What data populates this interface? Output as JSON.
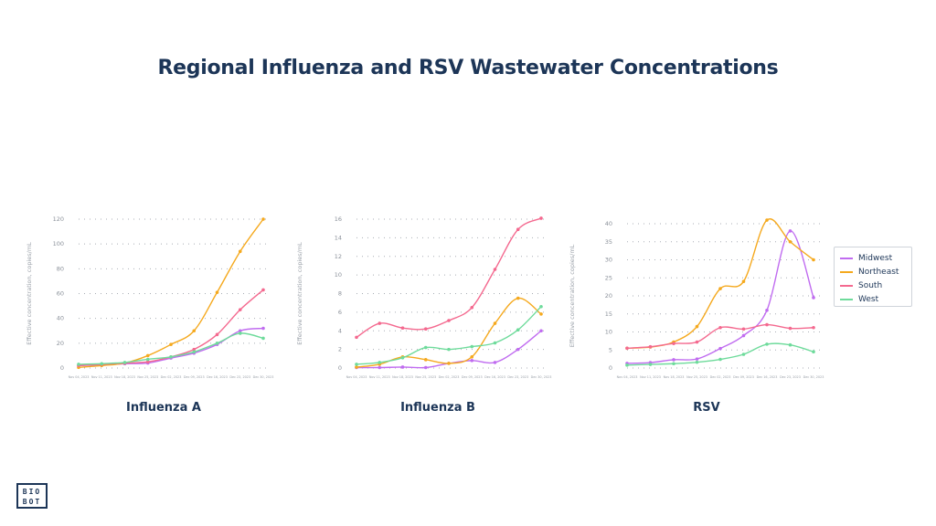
{
  "title": "Regional  Influenza and RSV Wastewater Concentrations",
  "logo": {
    "line1": "BIO",
    "line2": "BOT"
  },
  "series_colors": {
    "Midwest": "#c06cf0",
    "Northeast": "#f5a91e",
    "South": "#f4698f",
    "West": "#6edb9b"
  },
  "legend": [
    "Midwest",
    "Northeast",
    "South",
    "West"
  ],
  "chart_data": [
    {
      "type": "line",
      "title": "Influenza A",
      "ylabel": "Effective concentration, copies/mL",
      "ylim": [
        0,
        120
      ],
      "yticks": [
        0,
        20,
        40,
        60,
        80,
        100,
        120
      ],
      "x": [
        "Nov 04, 2023",
        "Nov 11, 2023",
        "Nov 18, 2023",
        "Nov 25, 2023",
        "Dec 02, 2023",
        "Dec 09, 2023",
        "Dec 16, 2023",
        "Dec 23, 2023",
        "Dec 30, 2023"
      ],
      "series": [
        {
          "name": "Midwest",
          "values": [
            2,
            2.5,
            3.5,
            4,
            8,
            12,
            19,
            30,
            32
          ]
        },
        {
          "name": "Northeast",
          "values": [
            0.5,
            2,
            4,
            10,
            19,
            30,
            61,
            94,
            120
          ]
        },
        {
          "name": "South",
          "values": [
            2,
            3,
            4,
            5,
            9,
            15,
            27,
            47,
            63
          ]
        },
        {
          "name": "West",
          "values": [
            3,
            3.5,
            4.5,
            7,
            9,
            13,
            20,
            28,
            24
          ]
        }
      ]
    },
    {
      "type": "line",
      "title": "Influenza B",
      "ylabel": "Effective concentration, copies/mL",
      "ylim": [
        0,
        16
      ],
      "yticks": [
        0,
        2,
        4,
        6,
        8,
        10,
        12,
        14,
        16
      ],
      "x": [
        "Nov 04, 2023",
        "Nov 11, 2023",
        "Nov 18, 2023",
        "Nov 25, 2023",
        "Dec 02, 2023",
        "Dec 09, 2023",
        "Dec 16, 2023",
        "Dec 23, 2023",
        "Dec 30, 2023"
      ],
      "series": [
        {
          "name": "Midwest",
          "values": [
            0.05,
            0.05,
            0.1,
            0.05,
            0.5,
            0.8,
            0.6,
            2.0,
            4.0
          ]
        },
        {
          "name": "Northeast",
          "values": [
            0.1,
            0.4,
            1.2,
            0.9,
            0.5,
            1.2,
            4.8,
            7.5,
            5.8
          ]
        },
        {
          "name": "South",
          "values": [
            3.3,
            4.8,
            4.3,
            4.2,
            5.1,
            6.5,
            10.6,
            14.9,
            16.1
          ]
        },
        {
          "name": "West",
          "values": [
            0.4,
            0.6,
            1.1,
            2.2,
            2.0,
            2.3,
            2.7,
            4.1,
            6.6
          ]
        }
      ]
    },
    {
      "type": "line",
      "title": "RSV",
      "ylabel": "Effective concentration, copies/mL",
      "ylim": [
        0,
        40
      ],
      "yticks": [
        0,
        5,
        10,
        15,
        20,
        25,
        30,
        35,
        40
      ],
      "x": [
        "Nov 04, 2023",
        "Nov 11, 2023",
        "Nov 18, 2023",
        "Nov 25, 2023",
        "Dec 02, 2023",
        "Dec 09, 2023",
        "Dec 16, 2023",
        "Dec 23, 2023",
        "Dec 30, 2023"
      ],
      "series": [
        {
          "name": "Midwest",
          "values": [
            1.3,
            1.5,
            2.3,
            2.5,
            5.4,
            9,
            16,
            38,
            19.5
          ]
        },
        {
          "name": "Northeast",
          "values": [
            5.5,
            5.8,
            7.2,
            11.5,
            22,
            24,
            41,
            35,
            30
          ]
        },
        {
          "name": "South",
          "values": [
            5.5,
            5.9,
            6.8,
            7.2,
            11.2,
            10.8,
            12,
            11,
            11.2
          ]
        },
        {
          "name": "West",
          "values": [
            0.8,
            1,
            1.2,
            1.6,
            2.4,
            3.8,
            6.6,
            6.4,
            4.5
          ]
        }
      ]
    }
  ]
}
